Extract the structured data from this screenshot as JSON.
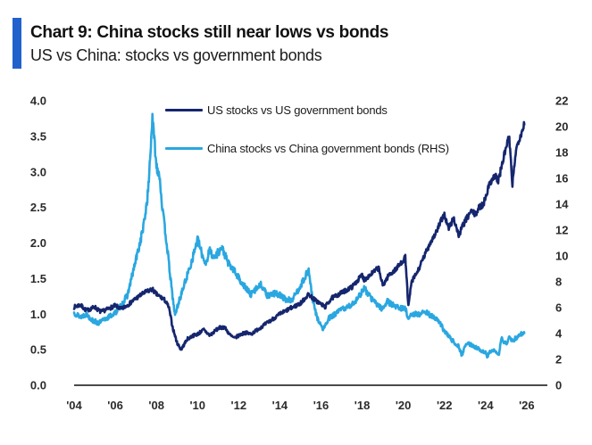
{
  "header": {
    "title": "Chart 9: China stocks still near lows vs bonds",
    "subtitle": "US vs China: stocks vs government bonds",
    "accent_bar_color": "#2161cc"
  },
  "chart_data": {
    "type": "line",
    "title": "Chart 9: China stocks still near lows vs bonds",
    "subtitle": "US vs China: stocks vs government bonds",
    "series": [
      {
        "name": "US stocks vs US government bonds",
        "axis": "left",
        "color": "#15266e",
        "points": [
          [
            2004.0,
            1.1
          ],
          [
            2004.3,
            1.13
          ],
          [
            2004.6,
            1.05
          ],
          [
            2005.0,
            1.1
          ],
          [
            2005.3,
            1.03
          ],
          [
            2005.7,
            1.08
          ],
          [
            2006.0,
            1.12
          ],
          [
            2006.3,
            1.07
          ],
          [
            2006.7,
            1.15
          ],
          [
            2007.0,
            1.22
          ],
          [
            2007.4,
            1.3
          ],
          [
            2007.8,
            1.35
          ],
          [
            2008.0,
            1.28
          ],
          [
            2008.4,
            1.2
          ],
          [
            2008.6,
            1.1
          ],
          [
            2008.8,
            0.8
          ],
          [
            2009.0,
            0.6
          ],
          [
            2009.2,
            0.5
          ],
          [
            2009.5,
            0.65
          ],
          [
            2009.8,
            0.7
          ],
          [
            2010.0,
            0.72
          ],
          [
            2010.3,
            0.78
          ],
          [
            2010.6,
            0.7
          ],
          [
            2011.0,
            0.8
          ],
          [
            2011.3,
            0.82
          ],
          [
            2011.6,
            0.7
          ],
          [
            2011.8,
            0.66
          ],
          [
            2012.0,
            0.7
          ],
          [
            2012.3,
            0.74
          ],
          [
            2012.6,
            0.72
          ],
          [
            2013.0,
            0.8
          ],
          [
            2013.5,
            0.9
          ],
          [
            2014.0,
            1.0
          ],
          [
            2014.5,
            1.08
          ],
          [
            2015.0,
            1.15
          ],
          [
            2015.4,
            1.28
          ],
          [
            2015.7,
            1.2
          ],
          [
            2016.0,
            1.14
          ],
          [
            2016.2,
            1.1
          ],
          [
            2016.5,
            1.22
          ],
          [
            2017.0,
            1.3
          ],
          [
            2017.5,
            1.38
          ],
          [
            2018.0,
            1.55
          ],
          [
            2018.1,
            1.48
          ],
          [
            2018.5,
            1.58
          ],
          [
            2018.8,
            1.65
          ],
          [
            2019.0,
            1.4
          ],
          [
            2019.3,
            1.55
          ],
          [
            2019.6,
            1.62
          ],
          [
            2019.9,
            1.72
          ],
          [
            2020.1,
            1.8
          ],
          [
            2020.25,
            1.1
          ],
          [
            2020.4,
            1.45
          ],
          [
            2020.7,
            1.6
          ],
          [
            2021.0,
            1.8
          ],
          [
            2021.3,
            2.0
          ],
          [
            2021.6,
            2.15
          ],
          [
            2021.9,
            2.35
          ],
          [
            2022.0,
            2.4
          ],
          [
            2022.2,
            2.2
          ],
          [
            2022.45,
            2.35
          ],
          [
            2022.7,
            2.1
          ],
          [
            2022.9,
            2.25
          ],
          [
            2023.1,
            2.35
          ],
          [
            2023.3,
            2.45
          ],
          [
            2023.5,
            2.4
          ],
          [
            2023.7,
            2.5
          ],
          [
            2023.9,
            2.55
          ],
          [
            2024.1,
            2.75
          ],
          [
            2024.3,
            2.9
          ],
          [
            2024.5,
            2.95
          ],
          [
            2024.6,
            2.85
          ],
          [
            2024.8,
            3.1
          ],
          [
            2025.0,
            3.35
          ],
          [
            2025.15,
            3.5
          ],
          [
            2025.3,
            2.8
          ],
          [
            2025.45,
            3.25
          ],
          [
            2025.6,
            3.45
          ],
          [
            2025.75,
            3.55
          ],
          [
            2025.9,
            3.7
          ]
        ]
      },
      {
        "name": "China stocks vs China government bonds (RHS)",
        "axis": "right",
        "color": "#2aa7e0",
        "points": [
          [
            2004.0,
            5.6
          ],
          [
            2004.3,
            5.3
          ],
          [
            2004.6,
            5.5
          ],
          [
            2004.9,
            5.0
          ],
          [
            2005.2,
            4.8
          ],
          [
            2005.5,
            5.1
          ],
          [
            2005.8,
            5.4
          ],
          [
            2006.0,
            5.6
          ],
          [
            2006.3,
            6.2
          ],
          [
            2006.6,
            7.0
          ],
          [
            2006.9,
            9.0
          ],
          [
            2007.2,
            11.0
          ],
          [
            2007.4,
            12.5
          ],
          [
            2007.6,
            15.0
          ],
          [
            2007.8,
            20.6
          ],
          [
            2007.9,
            19.0
          ],
          [
            2008.0,
            17.0
          ],
          [
            2008.15,
            16.3
          ],
          [
            2008.3,
            13.5
          ],
          [
            2008.5,
            11.0
          ],
          [
            2008.7,
            8.0
          ],
          [
            2008.9,
            5.4
          ],
          [
            2009.1,
            6.5
          ],
          [
            2009.4,
            8.0
          ],
          [
            2009.7,
            9.5
          ],
          [
            2010.0,
            11.3
          ],
          [
            2010.2,
            10.2
          ],
          [
            2010.4,
            9.4
          ],
          [
            2010.6,
            10.5
          ],
          [
            2010.8,
            9.8
          ],
          [
            2011.0,
            10.3
          ],
          [
            2011.2,
            10.6
          ],
          [
            2011.5,
            9.4
          ],
          [
            2011.8,
            8.8
          ],
          [
            2012.0,
            8.3
          ],
          [
            2012.3,
            7.6
          ],
          [
            2012.6,
            7.0
          ],
          [
            2012.9,
            7.6
          ],
          [
            2013.1,
            7.8
          ],
          [
            2013.4,
            6.9
          ],
          [
            2013.7,
            7.1
          ],
          [
            2014.0,
            7.0
          ],
          [
            2014.3,
            6.6
          ],
          [
            2014.6,
            6.6
          ],
          [
            2014.9,
            7.4
          ],
          [
            2015.1,
            8.0
          ],
          [
            2015.4,
            8.9
          ],
          [
            2015.6,
            6.5
          ],
          [
            2015.8,
            5.3
          ],
          [
            2016.0,
            4.6
          ],
          [
            2016.1,
            4.3
          ],
          [
            2016.4,
            5.2
          ],
          [
            2016.7,
            5.5
          ],
          [
            2017.0,
            5.9
          ],
          [
            2017.3,
            6.0
          ],
          [
            2017.6,
            6.4
          ],
          [
            2017.9,
            7.0
          ],
          [
            2018.1,
            7.5
          ],
          [
            2018.4,
            6.8
          ],
          [
            2018.7,
            6.3
          ],
          [
            2019.0,
            5.9
          ],
          [
            2019.2,
            6.5
          ],
          [
            2019.5,
            6.2
          ],
          [
            2019.8,
            6.0
          ],
          [
            2020.1,
            5.9
          ],
          [
            2020.25,
            5.2
          ],
          [
            2020.5,
            5.5
          ],
          [
            2020.8,
            5.5
          ],
          [
            2021.1,
            5.7
          ],
          [
            2021.4,
            5.3
          ],
          [
            2021.7,
            5.0
          ],
          [
            2022.0,
            4.2
          ],
          [
            2022.3,
            3.6
          ],
          [
            2022.5,
            3.3
          ],
          [
            2022.7,
            3.0
          ],
          [
            2022.85,
            2.3
          ],
          [
            2023.0,
            3.0
          ],
          [
            2023.1,
            3.3
          ],
          [
            2023.4,
            3.0
          ],
          [
            2023.7,
            2.8
          ],
          [
            2024.0,
            2.5
          ],
          [
            2024.08,
            2.2
          ],
          [
            2024.3,
            2.8
          ],
          [
            2024.5,
            2.5
          ],
          [
            2024.65,
            2.4
          ],
          [
            2024.78,
            3.7
          ],
          [
            2024.9,
            3.3
          ],
          [
            2025.0,
            3.2
          ],
          [
            2025.15,
            3.7
          ],
          [
            2025.3,
            3.4
          ],
          [
            2025.5,
            3.7
          ],
          [
            2025.7,
            3.9
          ],
          [
            2025.9,
            4.2
          ]
        ]
      }
    ],
    "x_axis": {
      "tick_labels": [
        "'04",
        "'06",
        "'08",
        "'10",
        "'12",
        "'14",
        "'16",
        "'18",
        "'20",
        "'22",
        "'24",
        "'26"
      ],
      "tick_years": [
        2004,
        2006,
        2008,
        2010,
        2012,
        2014,
        2016,
        2018,
        2020,
        2022,
        2024,
        2026
      ],
      "range": [
        2004,
        2027
      ]
    },
    "left_axis": {
      "tick_labels": [
        "0.0",
        "0.5",
        "1.0",
        "1.5",
        "2.0",
        "2.5",
        "3.0",
        "3.5",
        "4.0"
      ],
      "tick_values": [
        0,
        0.5,
        1,
        1.5,
        2,
        2.5,
        3,
        3.5,
        4
      ],
      "range": [
        0,
        4
      ]
    },
    "right_axis": {
      "tick_labels": [
        "0",
        "2",
        "4",
        "6",
        "8",
        "10",
        "12",
        "14",
        "16",
        "18",
        "20",
        "22"
      ],
      "tick_values": [
        0,
        2,
        4,
        6,
        8,
        10,
        12,
        14,
        16,
        18,
        20,
        22
      ],
      "range": [
        0,
        22
      ]
    },
    "layout": {
      "grid": false,
      "legend_position": "top-inside",
      "axis_line_color": "#4a4a4a",
      "tick_text_color": "#2b2b2b",
      "noise_seeds": [
        7,
        13
      ]
    }
  }
}
